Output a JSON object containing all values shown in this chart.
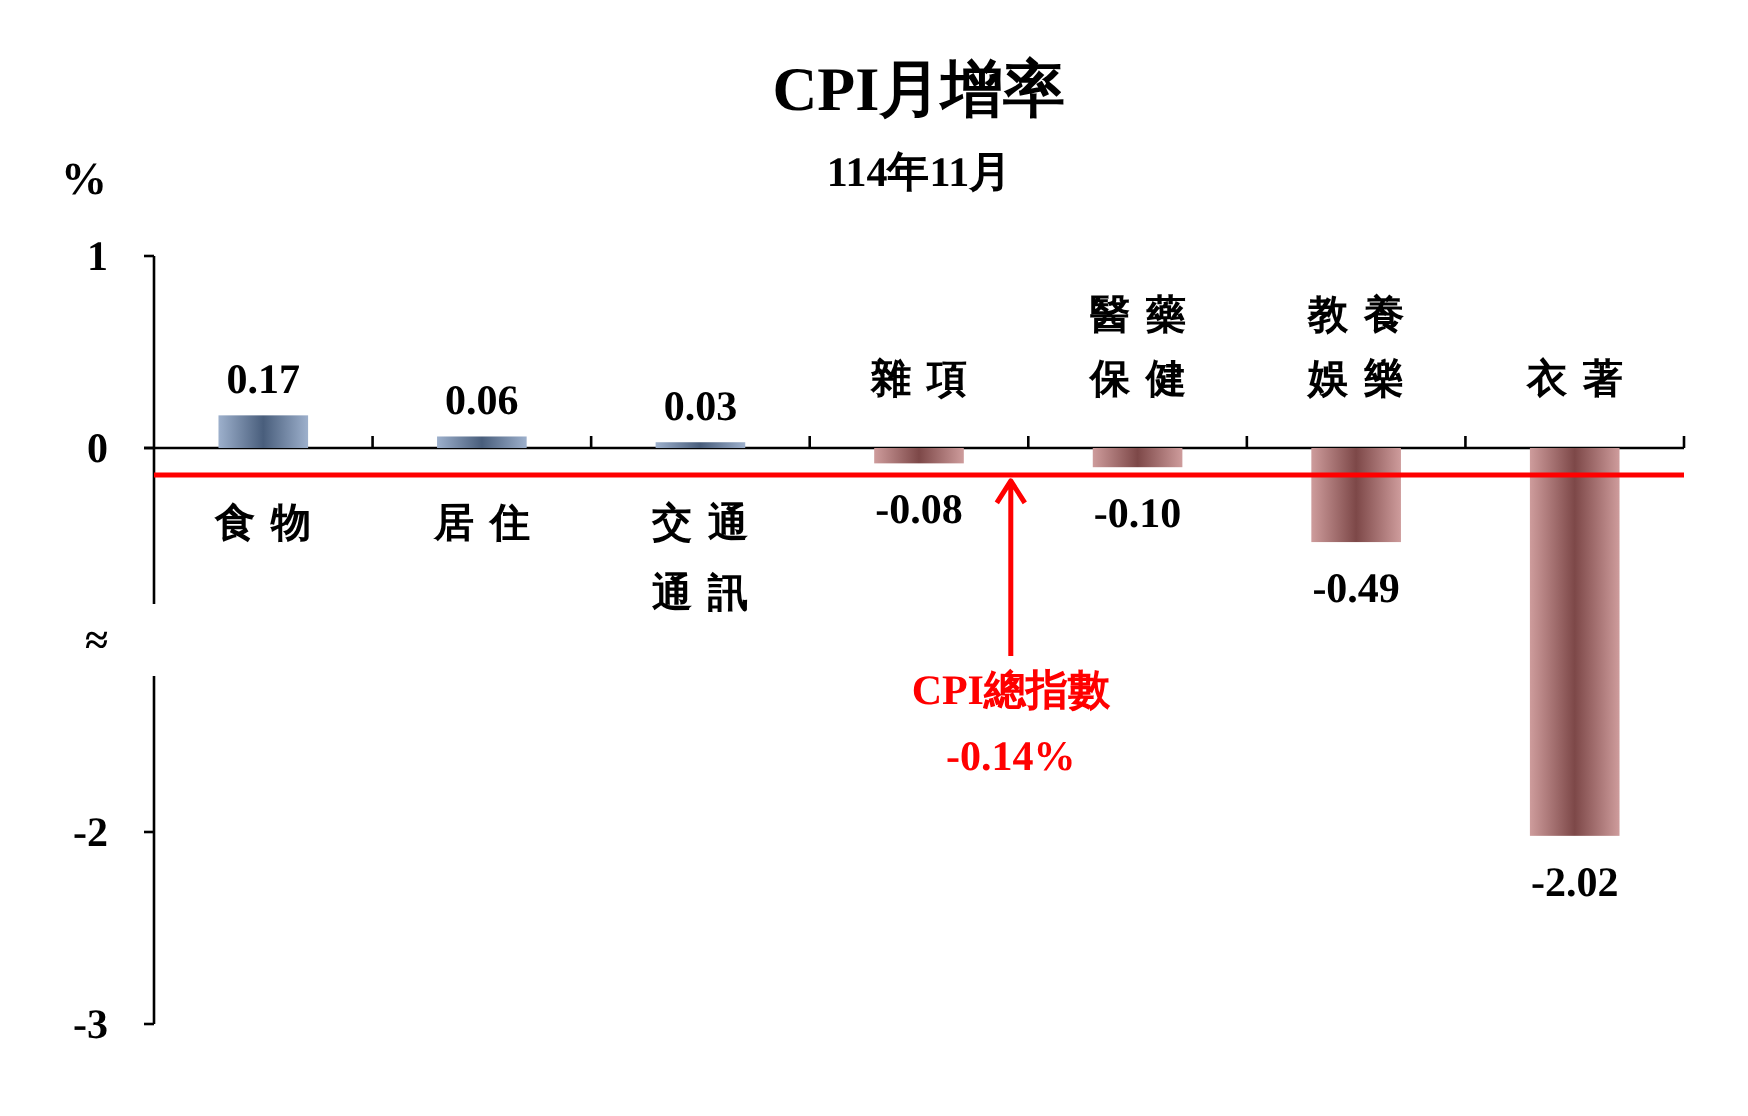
{
  "chart_data": {
    "type": "bar",
    "title": "CPI月增率",
    "subtitle": "114年11月",
    "ylabel": "%",
    "categories": [
      "食物",
      "居住",
      "交通通訊",
      "雜項",
      "醫藥保健",
      "教養娛樂",
      "衣著"
    ],
    "values": [
      0.17,
      0.06,
      0.03,
      -0.08,
      -0.1,
      -0.49,
      -2.02
    ],
    "value_labels": [
      "0.17",
      "0.06",
      "0.03",
      "-0.08",
      "-0.10",
      "-0.49",
      "-2.02"
    ],
    "colors": [
      "#6886b1",
      "#6886b1",
      "#6886b1",
      "#b36767",
      "#b36767",
      "#b36767",
      "#b36767"
    ],
    "ylim": [
      -3,
      1
    ],
    "yticks": [
      1,
      0,
      {
        "value": -1,
        "label": "≈"
      },
      -2,
      -3
    ],
    "ref_lines": [
      {
        "axis": "y",
        "value": -0.14,
        "label": "CPI總指數\n-0.14%",
        "color": "#ff0000"
      }
    ]
  }
}
